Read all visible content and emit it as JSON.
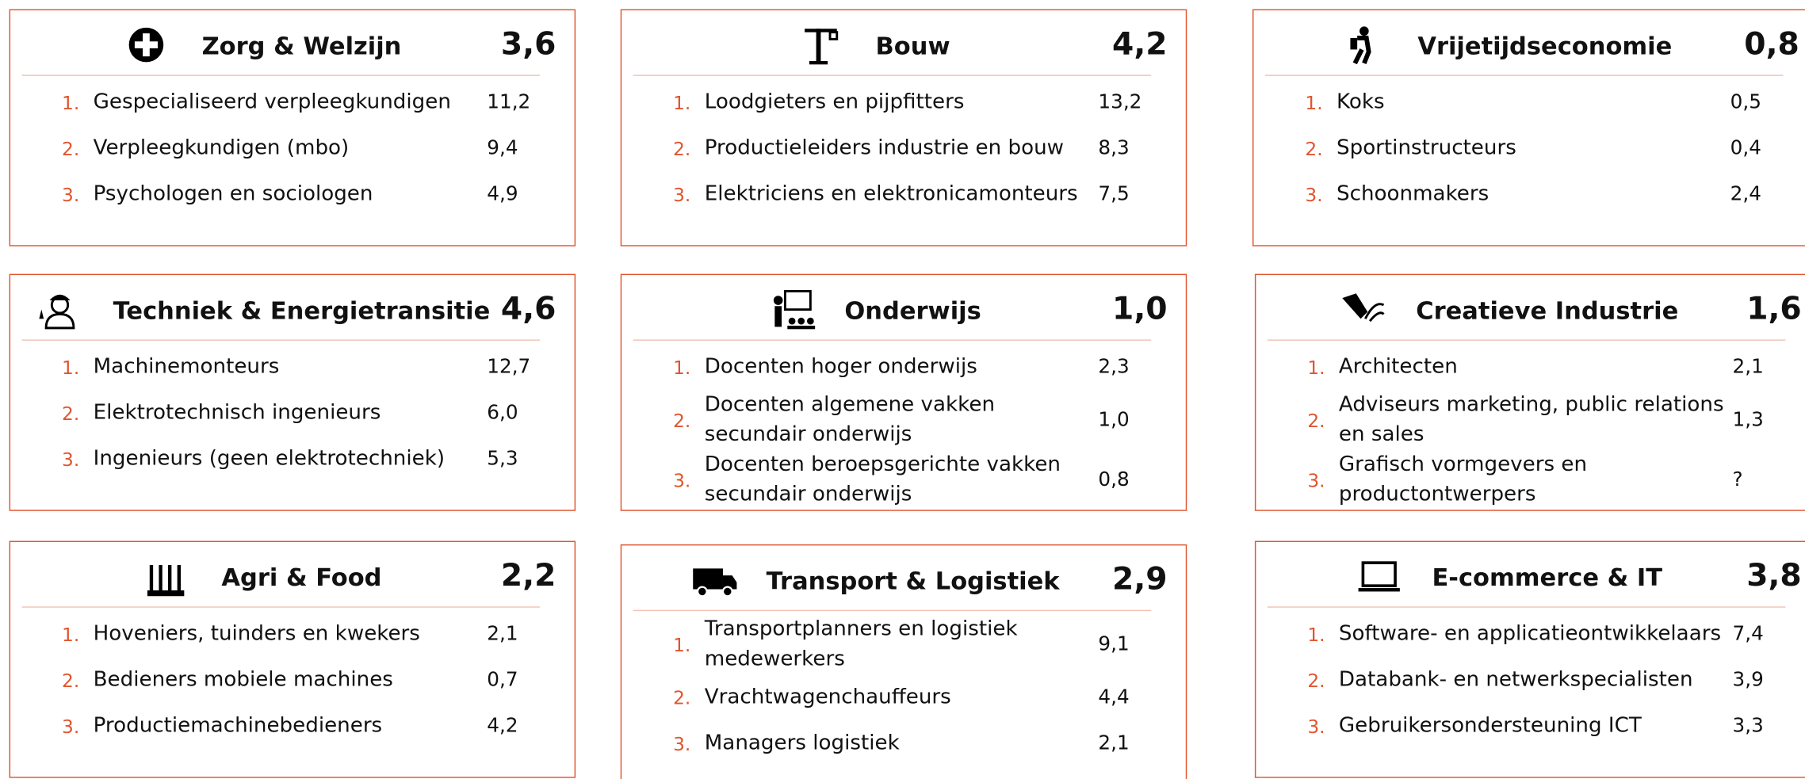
{
  "panels": [
    {
      "title": "Zorg & Welzijn",
      "score": "3,6",
      "items": [
        {
          "rank": "1.",
          "name": "Gespecialiseerd verpleegkundigen",
          "value": "11,2"
        },
        {
          "rank": "2.",
          "name": "Verpleegkundigen (mbo)",
          "value": "9,4"
        },
        {
          "rank": "3.",
          "name": "Psychologen en sociologen",
          "value": "4,9"
        }
      ]
    },
    {
      "title": "Bouw",
      "score": "4,2",
      "items": [
        {
          "rank": "1.",
          "name": "Loodgieters en pijpfitters",
          "value": "13,2"
        },
        {
          "rank": "2.",
          "name": "Productieleiders industrie en bouw",
          "value": "8,3"
        },
        {
          "rank": "3.",
          "name": "Elektriciens en elektronicamonteurs",
          "value": "7,5"
        }
      ]
    },
    {
      "title": "Vrijetijdseconomie",
      "score": "0,8",
      "items": [
        {
          "rank": "1.",
          "name": "Koks",
          "value": "0,5"
        },
        {
          "rank": "2.",
          "name": "Sportinstructeurs",
          "value": "0,4"
        },
        {
          "rank": "3.",
          "name": "Schoonmakers",
          "value": "2,4"
        }
      ]
    },
    {
      "title": "Techniek & Energietransitie",
      "score": "4,6",
      "items": [
        {
          "rank": "1.",
          "name": "Machinemonteurs",
          "value": "12,7"
        },
        {
          "rank": "2.",
          "name": "Elektrotechnisch ingenieurs",
          "value": "6,0"
        },
        {
          "rank": "3.",
          "name": "Ingenieurs (geen elektrotechniek)",
          "value": "5,3"
        }
      ]
    },
    {
      "title": "Onderwijs",
      "score": "1,0",
      "items": [
        {
          "rank": "1.",
          "name": "Docenten hoger onderwijs",
          "value": "2,3"
        },
        {
          "rank": "2.",
          "name": "Docenten algemene vakken secundair onderwijs",
          "value": "1,0"
        },
        {
          "rank": "3.",
          "name": "Docenten beroepsgerichte vakken secundair onderwijs",
          "value": "0,8"
        }
      ]
    },
    {
      "title": "Creatieve Industrie",
      "score": "1,6",
      "items": [
        {
          "rank": "1.",
          "name": "Architecten",
          "value": "2,1"
        },
        {
          "rank": "2.",
          "name": "Adviseurs marketing, public relations en sales",
          "value": "1,3"
        },
        {
          "rank": "3.",
          "name": "Grafisch vormgevers en productontwerpers",
          "value": "?"
        }
      ]
    },
    {
      "title": "Agri & Food",
      "score": "2,2",
      "items": [
        {
          "rank": "1.",
          "name": "Hoveniers, tuinders en kwekers",
          "value": "2,1"
        },
        {
          "rank": "2.",
          "name": "Bedieners mobiele machines",
          "value": "0,7"
        },
        {
          "rank": "3.",
          "name": "Productiemachinebedieners",
          "value": "4,2"
        }
      ]
    },
    {
      "title": "Transport & Logistiek",
      "score": "2,9",
      "items": [
        {
          "rank": "1.",
          "name": "Transportplanners en logistiek medewerkers",
          "value": "9,1"
        },
        {
          "rank": "2.",
          "name": "Vrachtwagenchauffeurs",
          "value": "4,4"
        },
        {
          "rank": "3.",
          "name": "Managers logistiek",
          "value": "2,1"
        }
      ]
    },
    {
      "title": "E-commerce & IT",
      "score": "3,8",
      "items": [
        {
          "rank": "1.",
          "name": "Software- en applicatieontwikkelaars",
          "value": "7,4"
        },
        {
          "rank": "2.",
          "name": "Databank- en netwerkspecialisten",
          "value": "3,9"
        },
        {
          "rank": "3.",
          "name": "Gebruikersondersteuning ICT",
          "value": "3,3"
        }
      ]
    }
  ]
}
